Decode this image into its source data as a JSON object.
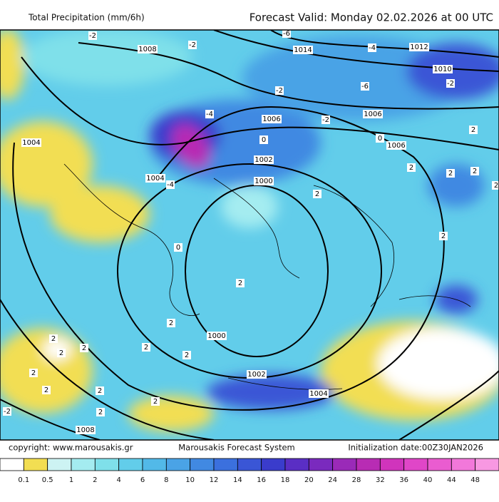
{
  "header": {
    "title": "Total Precipitation (mm/6h)",
    "valid": "Forecast Valid:  Monday 02.02.2026 at 00 UTC"
  },
  "footer": {
    "copyright": "copyright: www.marousakis.gr",
    "system": "Marousakis Forecast System",
    "init": "Initialization date:00Z30JAN2026"
  },
  "colorbar": {
    "labels": [
      "0.1",
      "0.5",
      "1",
      "2",
      "4",
      "6",
      "8",
      "10",
      "12",
      "14",
      "16",
      "18",
      "20",
      "24",
      "28",
      "32",
      "36",
      "40",
      "44",
      "48"
    ],
    "colors": [
      "#ffffff",
      "#f2de52",
      "#cdf3f3",
      "#a4ecf0",
      "#7fe0ea",
      "#62cdea",
      "#52b9e8",
      "#4aa3e6",
      "#4189e2",
      "#3b70de",
      "#3a56d6",
      "#3a3ccc",
      "#5a2ec4",
      "#7a2abe",
      "#9a2ab8",
      "#b82cb4",
      "#d034bc",
      "#e046c8",
      "#ea5cd0",
      "#f278da",
      "#f898e2"
    ]
  },
  "map": {
    "isobar_labels": [
      "1008",
      "1014",
      "1012",
      "1010",
      "1006",
      "1006",
      "1006",
      "1004",
      "1004",
      "1002",
      "1000",
      "1000",
      "1002",
      "1004",
      "1008"
    ],
    "temperature_labels": [
      "-2",
      "-2",
      "-6",
      "-4",
      "-2",
      "-6",
      "-2",
      "-4",
      "-2",
      "0",
      "0",
      "2",
      "-4",
      "2",
      "2",
      "2",
      "2",
      "2",
      "0",
      "2",
      "2",
      "2",
      "2",
      "2",
      "2",
      "2",
      "2",
      "2",
      "2",
      "2",
      "2",
      "2",
      "-2"
    ]
  }
}
